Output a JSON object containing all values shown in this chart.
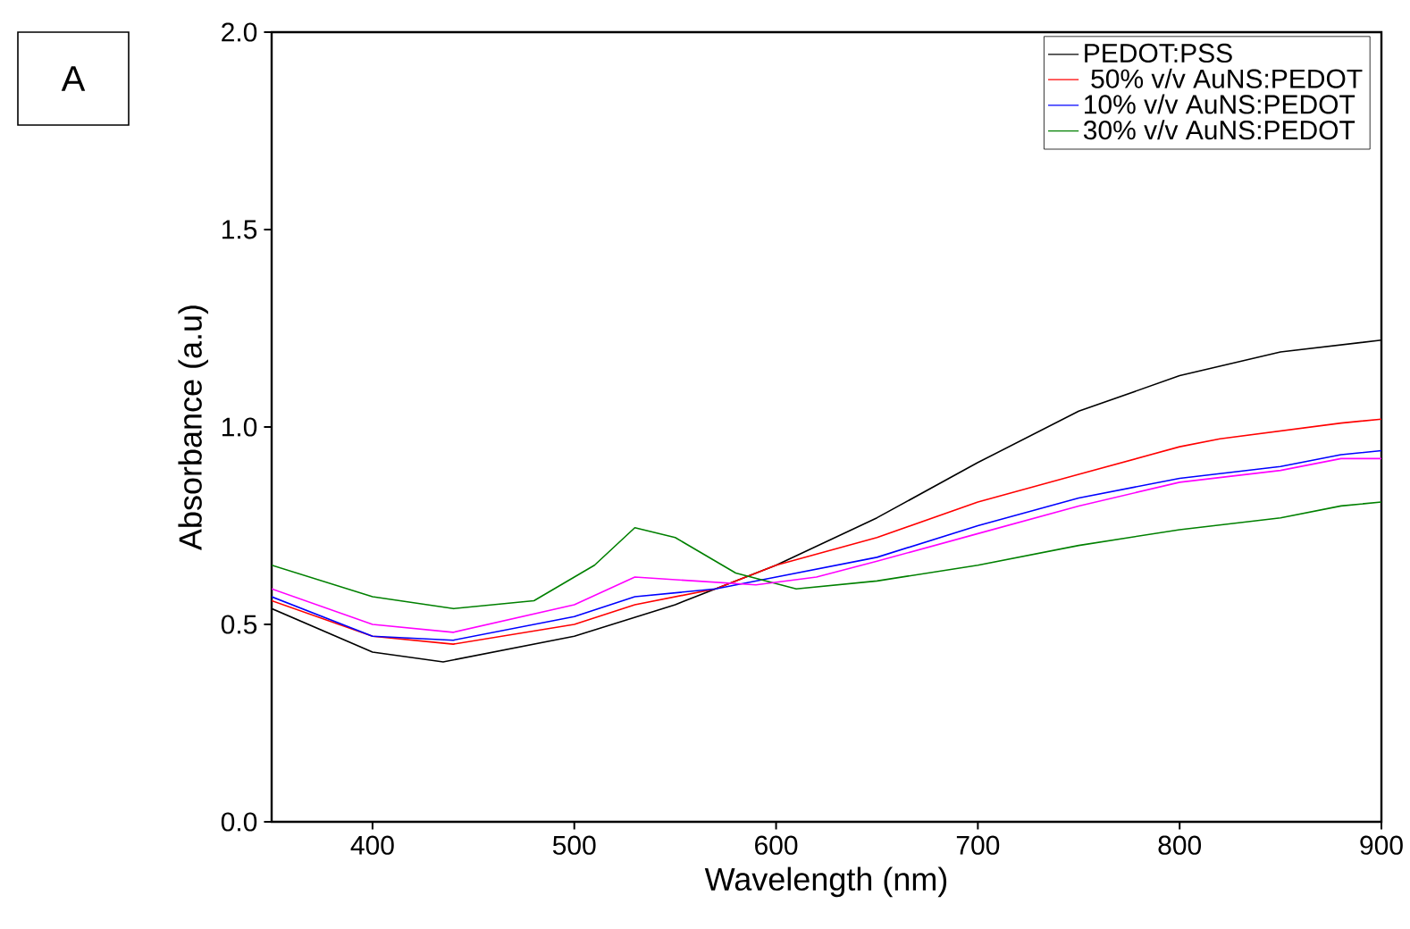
{
  "chart_data": {
    "type": "line",
    "xlabel": "Wavelength (nm)",
    "ylabel": "Absorbance (a.u)",
    "annotations": [
      "A"
    ],
    "xlim": [
      350,
      900
    ],
    "ylim": [
      0,
      2
    ],
    "xticks": [
      400,
      500,
      600,
      700,
      800,
      900
    ],
    "yticks": [
      {
        "value": 0,
        "label": "0.0"
      },
      {
        "value": 0.5,
        "label": "0.5"
      },
      {
        "value": 1,
        "label": "1.0"
      },
      {
        "value": 1.5,
        "label": "1.5"
      },
      {
        "value": 2,
        "label": "2.0"
      }
    ],
    "legend": "top right",
    "grid": false,
    "line_style": "solid",
    "marker": "none",
    "series": [
      {
        "name": "PEDOT:PSS",
        "color": "#000000",
        "x": [
          350,
          400,
          435,
          500,
          550,
          600,
          650,
          700,
          750,
          800,
          850,
          900
        ],
        "values": [
          0.54,
          0.43,
          0.405,
          0.47,
          0.55,
          0.65,
          0.77,
          0.91,
          1.04,
          1.13,
          1.19,
          1.22
        ]
      },
      {
        "name": " 50% v/v AuNS:PEDOT",
        "color": "#ff0000",
        "x": [
          350,
          400,
          440,
          500,
          530,
          570,
          600,
          650,
          700,
          750,
          800,
          820,
          850,
          880,
          900
        ],
        "values": [
          0.56,
          0.47,
          0.45,
          0.5,
          0.55,
          0.59,
          0.65,
          0.72,
          0.81,
          0.88,
          0.95,
          0.97,
          0.99,
          1.01,
          1.02
        ]
      },
      {
        "name": "10% v/v AuNS:PEDOT",
        "color": "#0000ff",
        "x": [
          350,
          400,
          440,
          500,
          530,
          570,
          600,
          650,
          700,
          750,
          800,
          850,
          880,
          900
        ],
        "values": [
          0.57,
          0.47,
          0.46,
          0.52,
          0.57,
          0.59,
          0.62,
          0.67,
          0.75,
          0.82,
          0.87,
          0.9,
          0.93,
          0.94
        ]
      },
      {
        "name": "30% v/v AuNS:PEDOT",
        "color": "#008000",
        "x": [
          350,
          400,
          440,
          480,
          510,
          530,
          550,
          580,
          610,
          650,
          700,
          750,
          800,
          850,
          880,
          900
        ],
        "values": [
          0.65,
          0.57,
          0.54,
          0.56,
          0.65,
          0.745,
          0.72,
          0.63,
          0.59,
          0.61,
          0.65,
          0.7,
          0.74,
          0.77,
          0.8,
          0.81
        ]
      },
      {
        "color": "#ff00ff",
        "x": [
          350,
          400,
          440,
          500,
          530,
          560,
          590,
          620,
          650,
          700,
          750,
          800,
          850,
          880,
          900
        ],
        "values": [
          0.59,
          0.5,
          0.48,
          0.55,
          0.62,
          0.61,
          0.6,
          0.62,
          0.66,
          0.73,
          0.8,
          0.86,
          0.89,
          0.92,
          0.92
        ]
      }
    ]
  }
}
